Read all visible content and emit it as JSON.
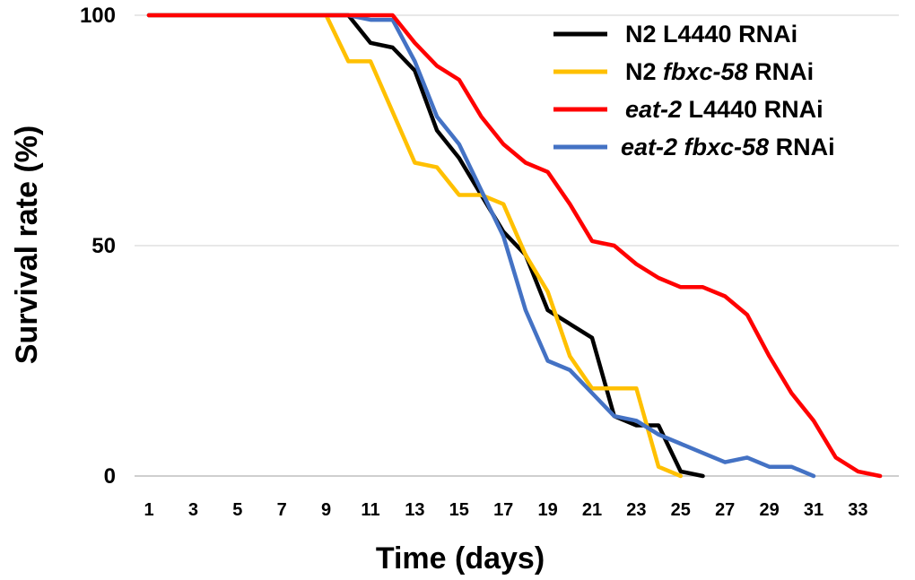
{
  "chart_data": {
    "type": "line",
    "title": "",
    "xlabel": "Time (days)",
    "ylabel": "Survival rate (%)",
    "xlim": [
      1,
      34
    ],
    "ylim": [
      0,
      100
    ],
    "x_ticks": [
      "1",
      "3",
      "5",
      "7",
      "9",
      "11",
      "13",
      "15",
      "17",
      "19",
      "21",
      "23",
      "25",
      "27",
      "29",
      "31",
      "33"
    ],
    "y_ticks": [
      "0",
      "50",
      "100"
    ],
    "gridlines": true,
    "legend_position": "top-right",
    "series": [
      {
        "name": "N2 L4440 RNAi",
        "legend_parts": [
          {
            "text": "N2 L4440 RNAi",
            "italic": false
          }
        ],
        "color": "#000000",
        "x": [
          1,
          2,
          3,
          4,
          5,
          6,
          7,
          8,
          9,
          10,
          11,
          12,
          13,
          14,
          15,
          16,
          17,
          18,
          19,
          20,
          21,
          22,
          23,
          24,
          25,
          26
        ],
        "y": [
          100,
          100,
          100,
          100,
          100,
          100,
          100,
          100,
          100,
          100,
          94,
          93,
          88,
          75,
          69,
          61,
          53,
          48,
          36,
          33,
          30,
          13,
          11,
          11,
          1,
          0
        ]
      },
      {
        "name": "N2 fbxc-58 RNAi",
        "legend_parts": [
          {
            "text": "N2 ",
            "italic": false
          },
          {
            "text": "fbxc-58",
            "italic": true
          },
          {
            "text": " RNAi",
            "italic": false
          }
        ],
        "color": "#FFC000",
        "x": [
          1,
          2,
          3,
          4,
          5,
          6,
          7,
          8,
          9,
          10,
          11,
          12,
          13,
          14,
          15,
          16,
          17,
          18,
          19,
          20,
          21,
          22,
          23,
          24,
          25
        ],
        "y": [
          100,
          100,
          100,
          100,
          100,
          100,
          100,
          100,
          100,
          90,
          90,
          79,
          68,
          67,
          61,
          61,
          59,
          48,
          40,
          26,
          19,
          19,
          19,
          2,
          0
        ]
      },
      {
        "name": "eat-2 L4440 RNAi",
        "legend_parts": [
          {
            "text": "eat-2",
            "italic": true
          },
          {
            "text": " L4440 RNAi",
            "italic": false
          }
        ],
        "color": "#FF0000",
        "x": [
          1,
          2,
          3,
          4,
          5,
          6,
          7,
          8,
          9,
          10,
          11,
          12,
          13,
          14,
          15,
          16,
          17,
          18,
          19,
          20,
          21,
          22,
          23,
          24,
          25,
          26,
          27,
          28,
          29,
          30,
          31,
          32,
          33,
          34
        ],
        "y": [
          100,
          100,
          100,
          100,
          100,
          100,
          100,
          100,
          100,
          100,
          100,
          100,
          94,
          89,
          86,
          78,
          72,
          68,
          66,
          59,
          51,
          50,
          46,
          43,
          41,
          41,
          39,
          35,
          26,
          18,
          12,
          4,
          1,
          0
        ]
      },
      {
        "name": "eat-2 fbxc-58 RNAi",
        "legend_parts": [
          {
            "text": "eat-2 fbxc-58",
            "italic": true
          },
          {
            "text": " RNAi",
            "italic": false
          }
        ],
        "color": "#4472C4",
        "x": [
          1,
          2,
          3,
          4,
          5,
          6,
          7,
          8,
          9,
          10,
          11,
          12,
          13,
          14,
          15,
          16,
          17,
          18,
          19,
          20,
          21,
          22,
          23,
          24,
          25,
          26,
          27,
          28,
          29,
          30,
          31
        ],
        "y": [
          100,
          100,
          100,
          100,
          100,
          100,
          100,
          100,
          100,
          100,
          99,
          99,
          90,
          78,
          72,
          62,
          52,
          36,
          25,
          23,
          18,
          13,
          12,
          9,
          7,
          5,
          3,
          4,
          2,
          2,
          0
        ]
      }
    ]
  }
}
